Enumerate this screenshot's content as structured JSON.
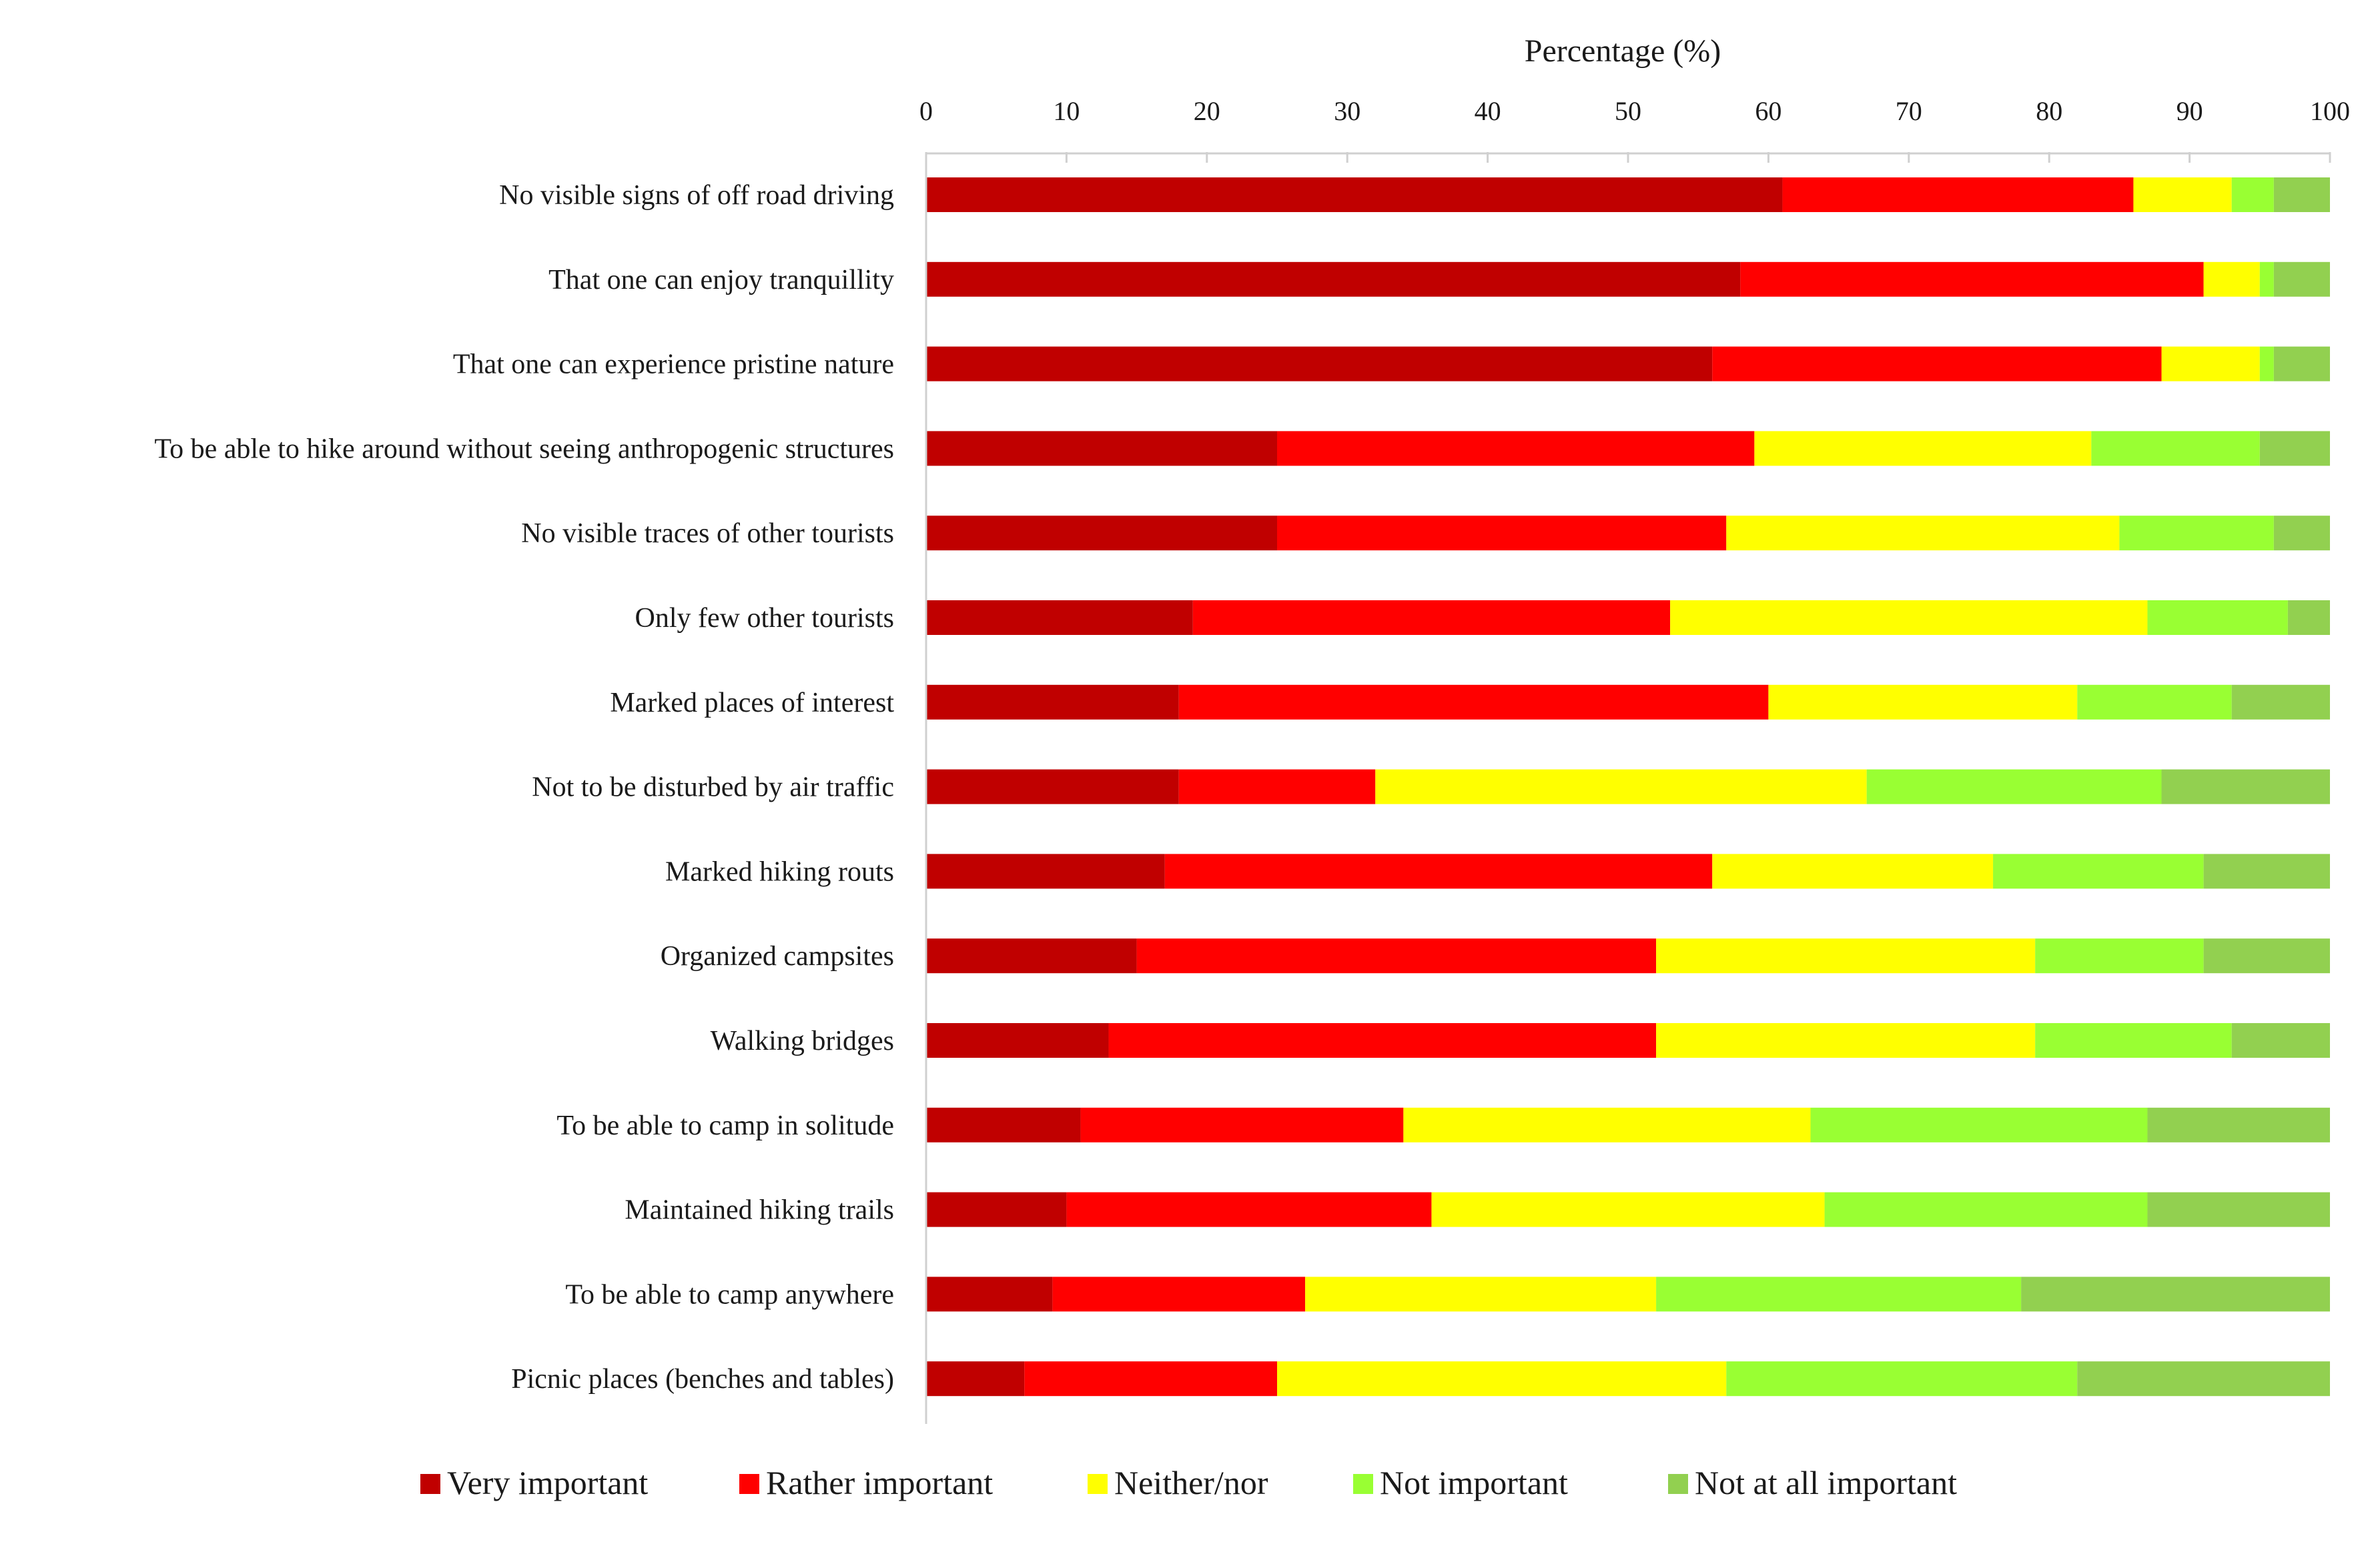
{
  "chart_data": {
    "type": "bar",
    "orientation": "horizontal",
    "stacked": true,
    "title": "",
    "xlabel": "Percentage (%)",
    "ylabel": "",
    "xlim": [
      0,
      100
    ],
    "x_ticks": [
      "0",
      "10",
      "20",
      "30",
      "40",
      "50",
      "60",
      "70",
      "80",
      "90",
      "100"
    ],
    "x_axis_position": "top",
    "grid": false,
    "legend_position": "bottom",
    "categories": [
      "No visible signs of off road driving",
      "That one can enjoy tranquillity",
      "That one can experience pristine nature",
      "To be able to hike around without seeing anthropogenic structures",
      "No visible traces of other tourists",
      "Only few other tourists",
      "Marked places of interest",
      "Not to be disturbed by air traffic",
      "Marked hiking routs",
      "Organized campsites",
      "Walking bridges",
      "To be able to camp in solitude",
      "Maintained hiking trails",
      "To be able to camp anywhere",
      "Picnic places (benches and tables)"
    ],
    "series": [
      {
        "name": "Very important",
        "color": "#C00000",
        "values": [
          61,
          58,
          56,
          25,
          25,
          19,
          18,
          18,
          17,
          15,
          13,
          11,
          10,
          9,
          7
        ]
      },
      {
        "name": "Rather important",
        "color": "#FF0000",
        "values": [
          25,
          33,
          32,
          34,
          32,
          34,
          42,
          14,
          39,
          37,
          39,
          23,
          26,
          18,
          18
        ]
      },
      {
        "name": "Neither/nor",
        "color": "#FFFF00",
        "values": [
          7,
          4,
          7,
          24,
          28,
          34,
          22,
          35,
          20,
          27,
          27,
          29,
          28,
          25,
          32
        ]
      },
      {
        "name": "Not important",
        "color": "#99FF33",
        "values": [
          3,
          1,
          1,
          12,
          11,
          10,
          11,
          21,
          15,
          12,
          14,
          24,
          23,
          26,
          25
        ]
      },
      {
        "name": "Not at all important",
        "color": "#92D050",
        "values": [
          4,
          4,
          4,
          5,
          4,
          3,
          7,
          12,
          9,
          9,
          7,
          13,
          13,
          22,
          18
        ]
      }
    ]
  }
}
